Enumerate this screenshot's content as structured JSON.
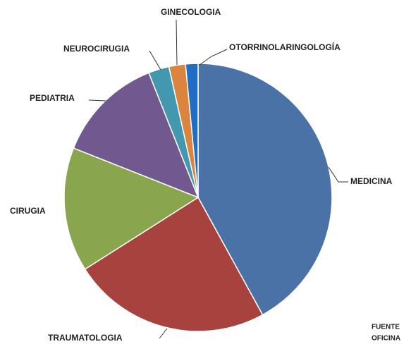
{
  "chart_data": {
    "type": "pie",
    "categories": [
      "MEDICINA",
      "TRAUMATOLOGIA",
      "CIRUGIA",
      "PEDIATRIA",
      "NEUROCIRUGIA",
      "GINECOLOGIA",
      "OTORRINOLARINGOLOGÍA"
    ],
    "values": [
      42,
      24,
      15,
      13,
      2.5,
      2,
      1.5
    ],
    "colors": [
      "#4a72a6",
      "#a8423f",
      "#89a54e",
      "#71588f",
      "#4298af",
      "#db843d",
      "#1f6dc4"
    ],
    "source": [
      "FUENTE",
      "OFICINA"
    ]
  }
}
